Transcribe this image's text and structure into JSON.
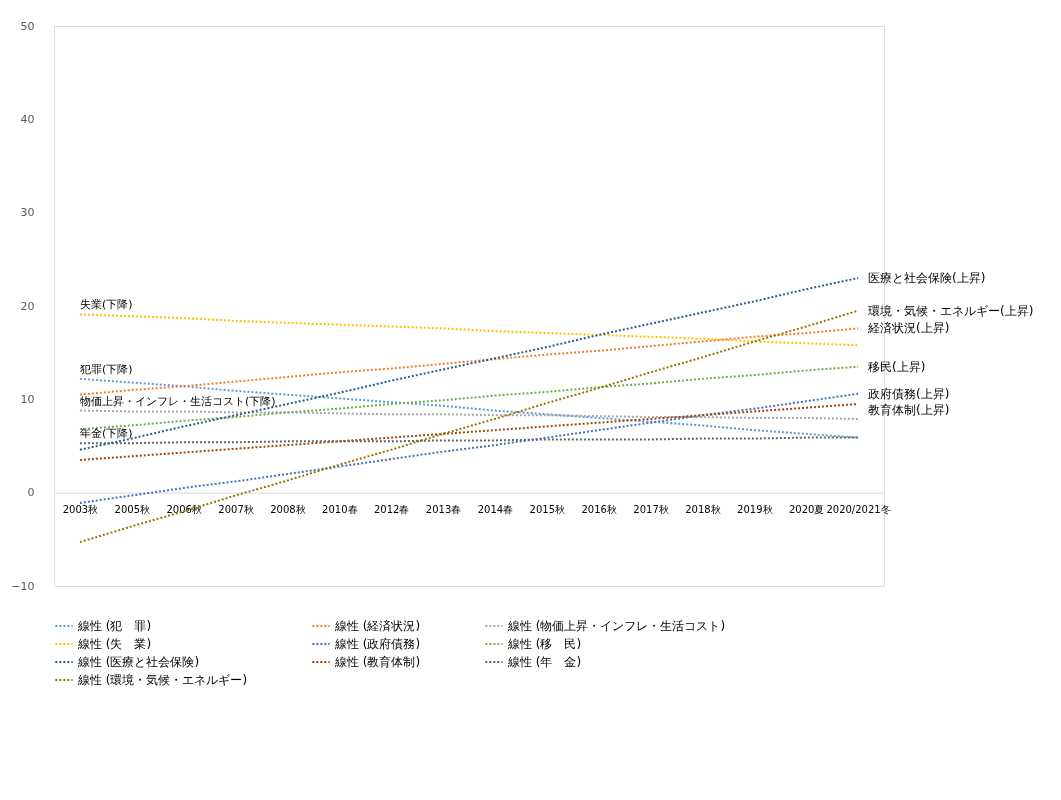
{
  "chart_data": {
    "type": "line",
    "categories": [
      "2003秋",
      "2005秋",
      "2006秋",
      "2007秋",
      "2008秋",
      "2010春",
      "2012春",
      "2013春",
      "2014春",
      "2015秋",
      "2016秋",
      "2017秋",
      "2018秋",
      "2019秋",
      "2020夏",
      "2020/2021冬"
    ],
    "series": [
      {
        "name": "線性 (犯　罪)",
        "color": "#5b9bd5",
        "values": [
          12.2,
          11.8,
          11.4,
          10.9,
          10.5,
          10.1,
          9.7,
          9.3,
          8.8,
          8.4,
          8.0,
          7.6,
          7.2,
          6.7,
          6.3,
          5.9
        ]
      },
      {
        "name": "線性 (経済状況)",
        "color": "#ed7d31",
        "values": [
          10.5,
          11.0,
          11.4,
          11.9,
          12.4,
          12.9,
          13.3,
          13.8,
          14.3,
          14.8,
          15.2,
          15.7,
          16.2,
          16.7,
          17.1,
          17.6
        ]
      },
      {
        "name": "線性 (物価上昇・インフレ・生活コスト)",
        "color": "#a5a5a5",
        "values": [
          8.8,
          8.7,
          8.7,
          8.6,
          8.6,
          8.5,
          8.4,
          8.4,
          8.3,
          8.3,
          8.2,
          8.1,
          8.1,
          8.0,
          8.0,
          7.9
        ]
      },
      {
        "name": "線性 (失　業)",
        "color": "#ffc000",
        "values": [
          19.1,
          18.9,
          18.7,
          18.4,
          18.2,
          18.0,
          17.8,
          17.6,
          17.3,
          17.1,
          16.9,
          16.7,
          16.5,
          16.2,
          16.0,
          15.8
        ]
      },
      {
        "name": "線性 (政府債務)",
        "color": "#4472c4",
        "values": [
          -1.1,
          -0.3,
          0.5,
          1.2,
          2.0,
          2.8,
          3.6,
          4.4,
          5.1,
          5.9,
          6.7,
          7.5,
          8.3,
          9.0,
          9.8,
          10.6
        ]
      },
      {
        "name": "線性 (移　民)",
        "color": "#70ad47",
        "values": [
          6.8,
          7.2,
          7.7,
          8.1,
          8.6,
          9.0,
          9.5,
          9.9,
          10.4,
          10.8,
          11.3,
          11.7,
          12.2,
          12.6,
          13.1,
          13.5
        ]
      },
      {
        "name": "線性 (医療と社会保険)",
        "color": "#255e91",
        "values": [
          4.6,
          5.8,
          7.1,
          8.3,
          9.5,
          10.7,
          12.0,
          13.2,
          14.4,
          15.6,
          16.9,
          18.1,
          19.3,
          20.5,
          21.8,
          23.0
        ]
      },
      {
        "name": "線性 (教育体制)",
        "color": "#9e480e",
        "values": [
          3.5,
          3.9,
          4.3,
          4.7,
          5.1,
          5.5,
          5.9,
          6.3,
          6.7,
          7.1,
          7.5,
          7.9,
          8.3,
          8.7,
          9.1,
          9.5
        ]
      },
      {
        "name": "線性 (年　金)",
        "color": "#636363",
        "values": [
          5.3,
          5.3,
          5.4,
          5.4,
          5.5,
          5.5,
          5.5,
          5.6,
          5.6,
          5.7,
          5.7,
          5.7,
          5.8,
          5.8,
          5.9,
          5.9
        ]
      },
      {
        "name": "線性 (環境・気候・エネルギー)",
        "color": "#997300",
        "values": [
          -5.3,
          -3.6,
          -2.0,
          -0.3,
          1.3,
          3.0,
          4.6,
          6.3,
          7.9,
          9.6,
          11.2,
          12.9,
          14.5,
          16.2,
          17.8,
          19.5
        ]
      }
    ],
    "ylim": [
      -10,
      50
    ],
    "yticks": [
      -10,
      0,
      10,
      20,
      30,
      40,
      50
    ],
    "grid": false,
    "legend": "bottom",
    "marker": "none",
    "line_style": "dotted",
    "annotations": [
      {
        "text": "失業(下降)",
        "x": "2003秋",
        "y": 19.1
      },
      {
        "text": "犯罪(下降)",
        "x": "2003秋",
        "y": 12.2
      },
      {
        "text": "物価上昇・インフレ・生活コスト(下降)",
        "x": "2003秋",
        "y": 8.8
      },
      {
        "text": "年金(下降)",
        "x": "2003秋",
        "y": 5.3
      },
      {
        "text": "医療と社会保険(上昇)",
        "x": "2020/2021冬",
        "y": 23.0
      },
      {
        "text": "環境・気候・エネルギー(上昇)",
        "x": "2020/2021冬",
        "y": 19.5
      },
      {
        "text": "経済状況(上昇)",
        "x": "2020/2021冬",
        "y": 17.6
      },
      {
        "text": "移民(上昇)",
        "x": "2020/2021冬",
        "y": 13.5
      },
      {
        "text": "政府債務(上昇)",
        "x": "2020/2021冬",
        "y": 10.6
      },
      {
        "text": "教育体制(上昇)",
        "x": "2020/2021冬",
        "y": 9.5
      }
    ]
  }
}
